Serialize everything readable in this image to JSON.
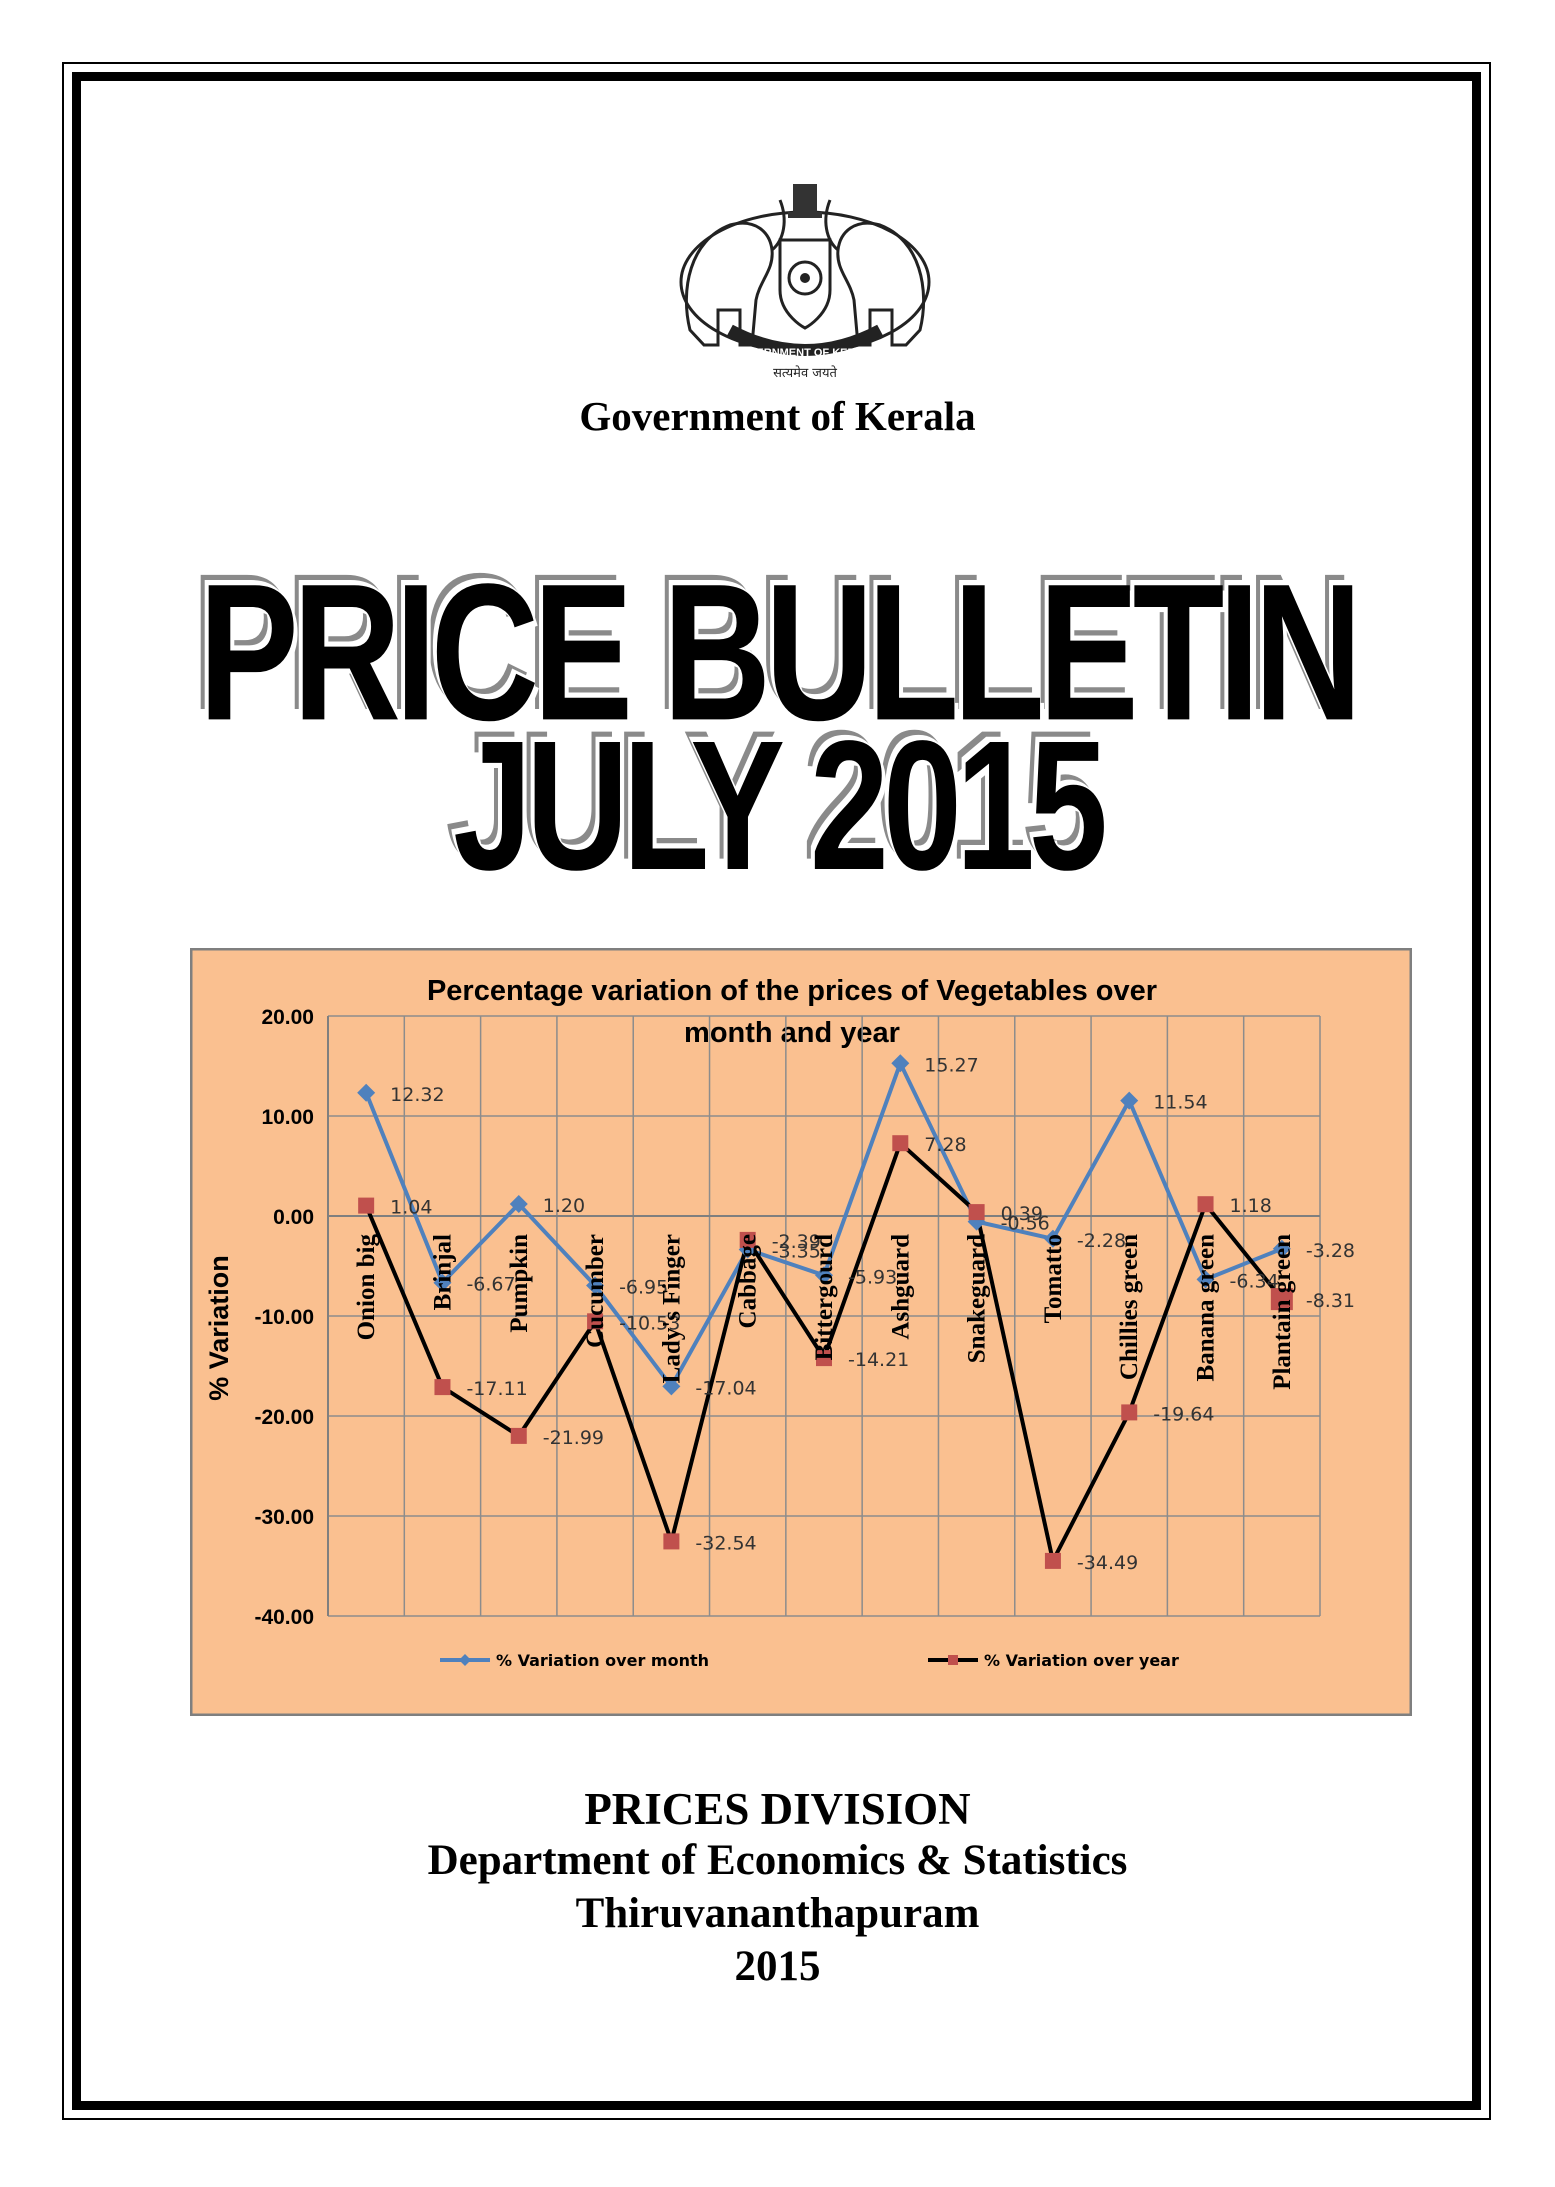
{
  "header": {
    "emblem_text": "GOVERNMENT OF KERALA",
    "emblem_motto": "सत्यमेव जयते",
    "government": "Government of Kerala"
  },
  "title": {
    "line1": "PRICE BULLETIN",
    "line2": "JULY 2015"
  },
  "chart_data": {
    "type": "line",
    "title_line1": "Percentage variation of the prices of Vegetables over",
    "title_line2": "month and year",
    "ylabel": "% Variation",
    "ylim": [
      -40,
      20
    ],
    "yticks": [
      "20.00",
      "10.00",
      "0.00",
      "-10.00",
      "-20.00",
      "-30.00",
      "-40.00"
    ],
    "grid": true,
    "legend_position": "bottom",
    "background": "#fac090",
    "categories": [
      "Onion big",
      "Brinjal",
      "Pumpkin",
      "Cucumber",
      "Lady's Finger",
      "Cabbage",
      "Bittergourd",
      "Ashguard",
      "Snakeguard",
      "Tomatto",
      "Chillies green",
      "Banana green",
      "Plantain green"
    ],
    "series": [
      {
        "name": "% Variation over month",
        "color": "#4f81bd",
        "marker": "diamond",
        "values": [
          12.32,
          -6.67,
          1.2,
          -6.95,
          -17.04,
          -3.35,
          -5.93,
          15.27,
          -0.56,
          -2.28,
          11.54,
          -6.34,
          -3.28
        ],
        "labels": [
          "12.32",
          "-6.67",
          "1.20",
          "-6.95",
          "-17.04",
          "-3.35",
          "-5.93",
          "15.27",
          "-0.56",
          "-2.28",
          "11.54",
          "-6.34",
          "-3.28"
        ]
      },
      {
        "name": "% Variation over year",
        "color": "#000000",
        "marker_color": "#c0504d",
        "marker": "square",
        "values": [
          1.04,
          -17.11,
          -21.99,
          -10.53,
          -32.54,
          -2.39,
          -14.21,
          7.28,
          0.39,
          -34.49,
          -19.64,
          1.18,
          -8.31
        ],
        "labels": [
          "1.04",
          "-17.11",
          "-21.99",
          "-10.53",
          "-32.54",
          "-2.39",
          "-14.21",
          "7.28",
          "0.39",
          "-34.49",
          "-19.64",
          "1.18",
          "-8.31"
        ]
      }
    ]
  },
  "footer": {
    "division": "PRICES DIVISION",
    "department": "Department of Economics & Statistics",
    "city": "Thiruvananthapuram",
    "year": "2015"
  }
}
